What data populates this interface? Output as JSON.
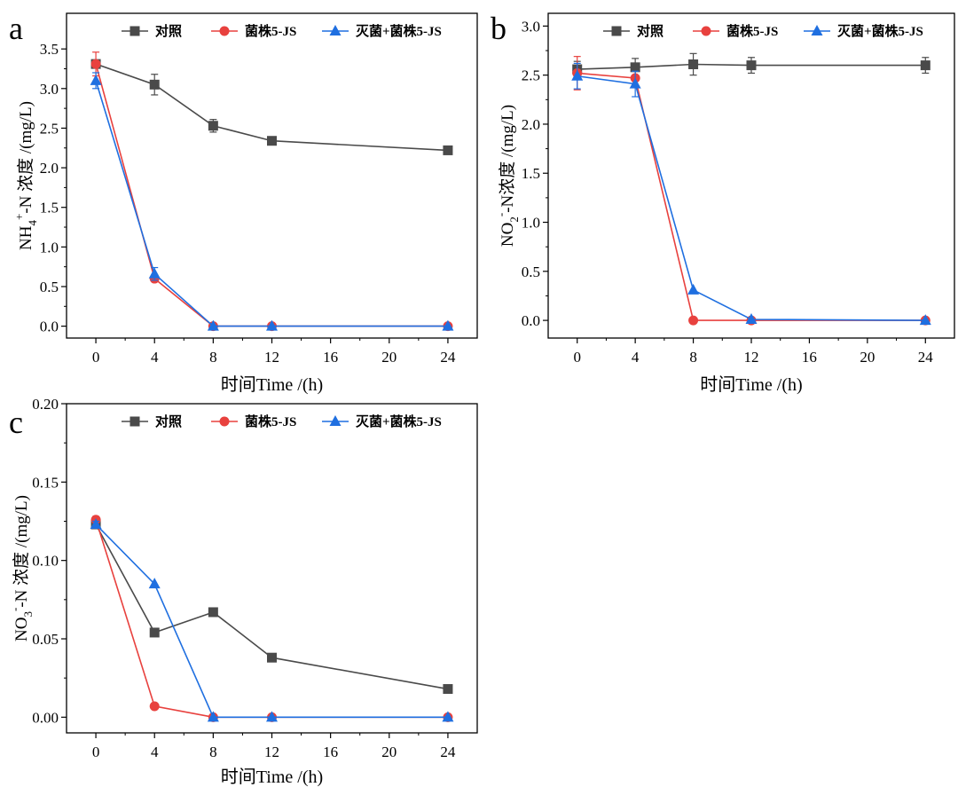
{
  "colors": {
    "control": "#4a4a4a",
    "strain": "#e8413e",
    "killed": "#1f6fe0",
    "axis": "#000000"
  },
  "legend_labels": [
    "对照",
    "菌株5-JS",
    "灭菌+菌株5-JS"
  ],
  "chart_data": [
    {
      "panel": "a",
      "type": "line",
      "title": "",
      "xlabel": "时间Time /(h)",
      "ylabel": {
        "main": "NH",
        "sub": "4",
        "sup": "+",
        "rest": "-N 浓度 /(mg/L)"
      },
      "x_ticks": [
        "0",
        "4",
        "8",
        "12",
        "16",
        "20",
        "24"
      ],
      "y_ticks": [
        "0.0",
        "0.5",
        "1.0",
        "1.5",
        "2.0",
        "2.5",
        "3.0",
        "3.5"
      ],
      "xlim": [
        -2,
        26
      ],
      "ylim": [
        -0.15,
        3.95
      ],
      "y_ticks_values": [
        0,
        0.5,
        1,
        1.5,
        2,
        2.5,
        3,
        3.5
      ],
      "legend_position": "top",
      "x": [
        0,
        4,
        8,
        12,
        24
      ],
      "series": [
        {
          "name": "对照",
          "marker": "square",
          "values": [
            3.31,
            3.05,
            2.53,
            2.34,
            2.22
          ],
          "err": [
            0.03,
            0.13,
            0.08,
            0.02,
            0.02
          ]
        },
        {
          "name": "菌株5-JS",
          "marker": "circle",
          "values": [
            3.31,
            0.6,
            0.0,
            0.0,
            0.0
          ],
          "err": [
            0.15,
            0.03,
            0.0,
            0.0,
            0.0
          ]
        },
        {
          "name": "灭菌+菌株5-JS",
          "marker": "triangle",
          "values": [
            3.1,
            0.66,
            0.0,
            0.0,
            0.0
          ],
          "err": [
            0.1,
            0.08,
            0.0,
            0.0,
            0.0
          ]
        }
      ]
    },
    {
      "panel": "b",
      "type": "line",
      "title": "",
      "xlabel": "时间Time /(h)",
      "ylabel": {
        "main": "NO",
        "sub": "2",
        "sup": "-",
        "rest": "-N浓度 /(mg/L)"
      },
      "x_ticks": [
        "0",
        "4",
        "8",
        "12",
        "16",
        "20",
        "24"
      ],
      "y_ticks": [
        "0.0",
        "0.5",
        "1.0",
        "1.5",
        "2.0",
        "2.5",
        "3.0"
      ],
      "xlim": [
        -2,
        26
      ],
      "ylim": [
        -0.18,
        3.13
      ],
      "y_ticks_values": [
        0,
        0.5,
        1,
        1.5,
        2,
        2.5,
        3
      ],
      "legend_position": "top",
      "x": [
        0,
        4,
        8,
        12,
        24
      ],
      "series": [
        {
          "name": "对照",
          "marker": "square",
          "values": [
            2.56,
            2.58,
            2.61,
            2.6,
            2.6
          ],
          "err": [
            0.08,
            0.09,
            0.11,
            0.08,
            0.08
          ]
        },
        {
          "name": "菌株5-JS",
          "marker": "circle",
          "values": [
            2.52,
            2.47,
            0.0,
            0.0,
            0.0
          ],
          "err": [
            0.17,
            0.03,
            0.0,
            0.0,
            0.0
          ]
        },
        {
          "name": "灭菌+菌株5-JS",
          "marker": "triangle",
          "values": [
            2.49,
            2.41,
            0.31,
            0.01,
            0.0
          ],
          "err": [
            0.13,
            0.13,
            0.0,
            0.0,
            0.0
          ]
        }
      ]
    },
    {
      "panel": "c",
      "type": "line",
      "title": "",
      "xlabel": "时间Time /(h)",
      "ylabel": {
        "main": "NO",
        "sub": "3",
        "sup": "-",
        "rest": "-N 浓度 /(mg/L)"
      },
      "x_ticks": [
        "0",
        "4",
        "8",
        "12",
        "16",
        "20",
        "24"
      ],
      "y_ticks": [
        "0.00",
        "0.05",
        "0.10",
        "0.15",
        "0.20"
      ],
      "xlim": [
        -2,
        26
      ],
      "ylim": [
        -0.01,
        0.2
      ],
      "y_ticks_values": [
        0,
        0.05,
        0.1,
        0.15,
        0.2
      ],
      "legend_position": "top",
      "x": [
        0,
        4,
        8,
        12,
        24
      ],
      "series": [
        {
          "name": "对照",
          "marker": "square",
          "values": [
            0.123,
            0.054,
            0.067,
            0.038,
            0.018
          ],
          "err": [
            0,
            0,
            0,
            0,
            0
          ]
        },
        {
          "name": "菌株5-JS",
          "marker": "circle",
          "values": [
            0.126,
            0.007,
            0.0,
            0.0,
            0.0
          ],
          "err": [
            0.002,
            0,
            0,
            0,
            0
          ]
        },
        {
          "name": "灭菌+菌株5-JS",
          "marker": "triangle",
          "values": [
            0.123,
            0.085,
            0.0,
            0.0,
            0.0
          ],
          "err": [
            0.002,
            0,
            0,
            0,
            0
          ]
        }
      ]
    }
  ]
}
